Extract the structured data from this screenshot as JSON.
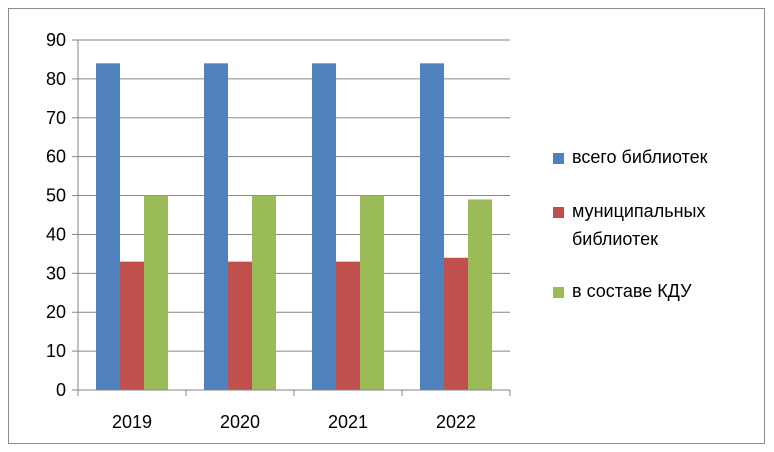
{
  "chart_data": {
    "type": "bar",
    "categories": [
      "2019",
      "2020",
      "2021",
      "2022"
    ],
    "series": [
      {
        "name": "всего библиотек",
        "values": [
          84,
          84,
          84,
          84
        ],
        "color": "#4f81bd"
      },
      {
        "name": "муниципальных библиотек",
        "legend_lines": [
          "муниципальных",
          "библиотек"
        ],
        "values": [
          33,
          33,
          33,
          34
        ],
        "color": "#c0504d"
      },
      {
        "name": "в составе КДУ",
        "values": [
          50,
          50,
          50,
          49
        ],
        "color": "#9bbb59"
      }
    ],
    "y_ticks": [
      "0",
      "10",
      "20",
      "30",
      "40",
      "50",
      "60",
      "70",
      "80",
      "90"
    ],
    "ylim": [
      0,
      90
    ],
    "title": "",
    "xlabel": "",
    "ylabel": "",
    "grid": true,
    "legend_position": "right"
  }
}
